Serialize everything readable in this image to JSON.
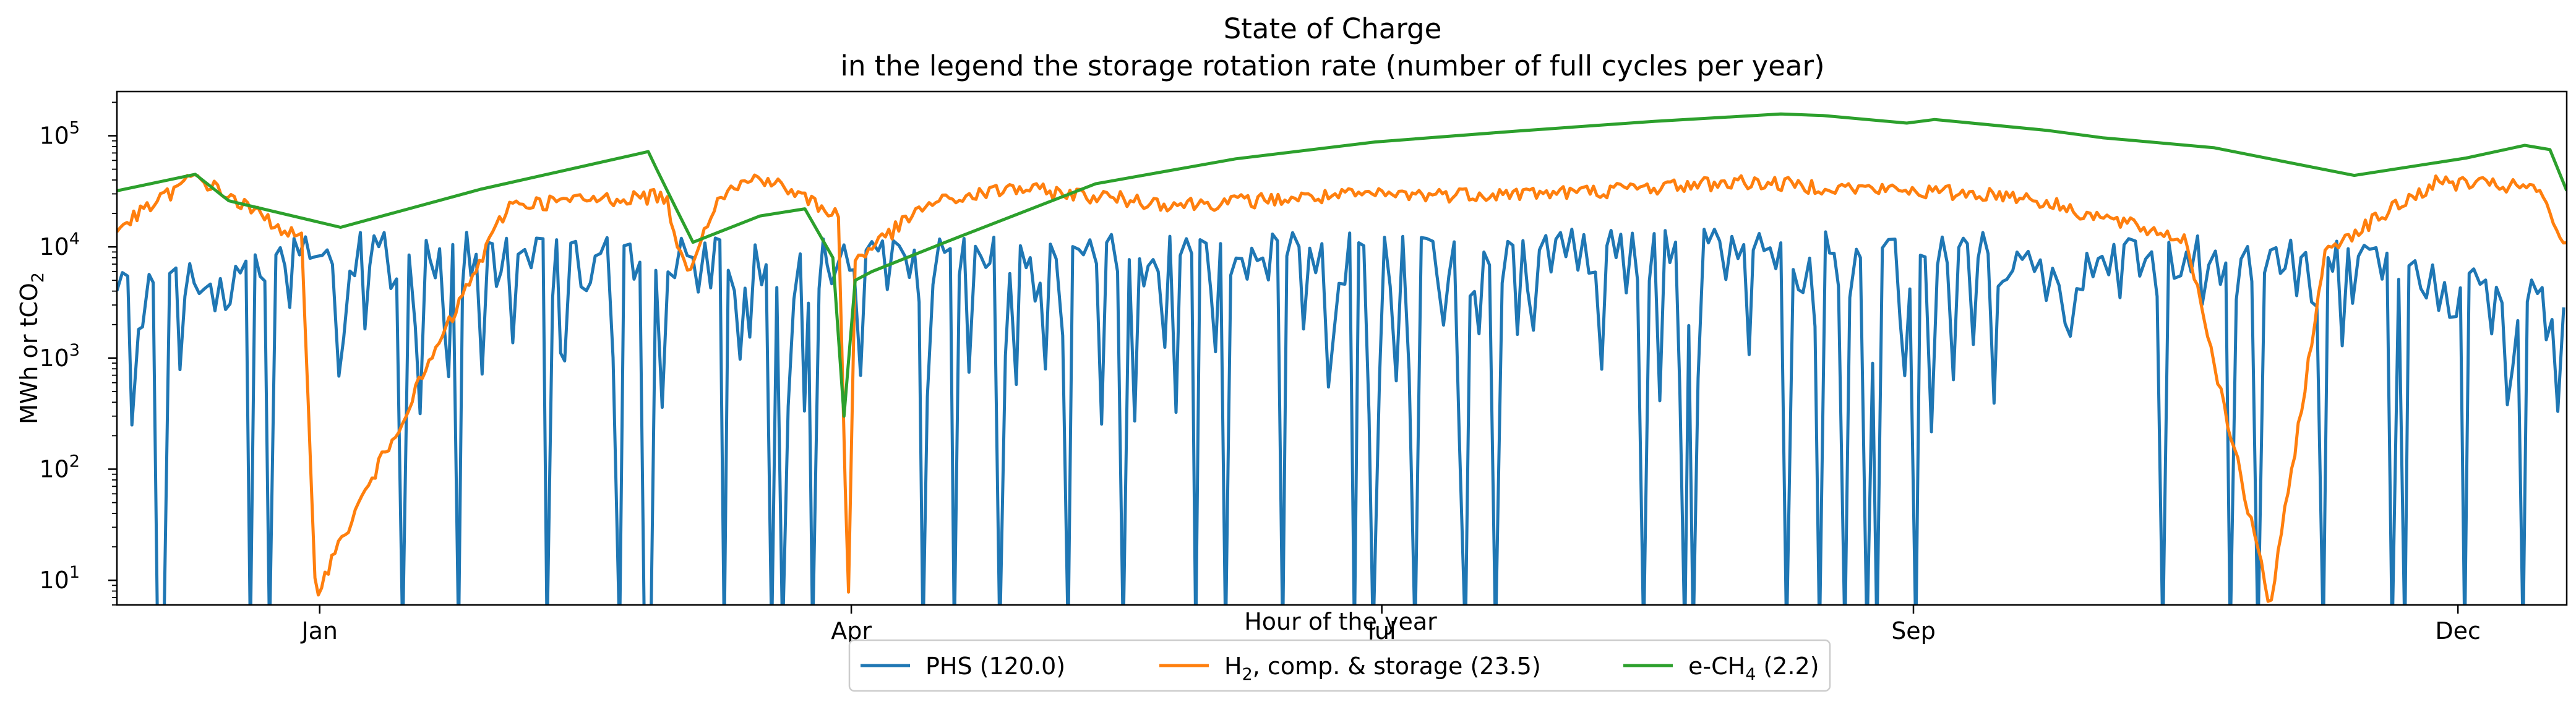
{
  "chart_data": {
    "type": "line",
    "title": "State of Charge",
    "subtitle": "in the legend the storage rotation rate (number of full cycles per year)",
    "xlabel": "Hour of the year",
    "ylabel": "MWh or tCO",
    "ylabel_sub": "2",
    "yscale": "log",
    "ylim": [
      6,
      250000
    ],
    "xlim": [
      0,
      8760
    ],
    "x_ticks": [
      {
        "label": "Jan",
        "x": 725
      },
      {
        "label": "Apr",
        "x": 2626
      },
      {
        "label": "Jul",
        "x": 4523
      },
      {
        "label": "Sep",
        "x": 6424
      },
      {
        "label": "Dec",
        "x": 8371
      }
    ],
    "y_ticks": [
      {
        "base": "10",
        "exp": "1",
        "value": 10
      },
      {
        "base": "10",
        "exp": "2",
        "value": 100
      },
      {
        "base": "10",
        "exp": "3",
        "value": 1000
      },
      {
        "base": "10",
        "exp": "4",
        "value": 10000
      },
      {
        "base": "10",
        "exp": "5",
        "value": 100000
      }
    ],
    "series": [
      {
        "name": "PHS (120.0)",
        "label_parts": [
          "PHS (120.0)"
        ],
        "color": "#1f77b4",
        "generator": "phs",
        "x": [
          0,
          800,
          1600,
          2400,
          3200,
          4000,
          4800,
          5600,
          6400,
          7200,
          8000,
          8760
        ],
        "values": [
          4000,
          10000,
          9000,
          8000,
          9000,
          10000,
          10000,
          10000,
          10000,
          9000,
          8000,
          3000
        ]
      },
      {
        "name": "H2, comp. & storage (23.5)",
        "label_parts": [
          "H",
          "2",
          ", comp. & storage (23.5)"
        ],
        "color": "#ff7f0e",
        "generator": "h2",
        "x": [
          0,
          280,
          660,
          710,
          1400,
          1960,
          2035,
          2150,
          2300,
          2580,
          2615,
          2640,
          2900,
          3200,
          3800,
          4400,
          5200,
          5800,
          6200,
          6800,
          7400,
          7700,
          7900,
          8300,
          8650,
          8760
        ],
        "values": [
          15000,
          45000,
          12000,
          8,
          25000,
          30000,
          6000,
          30000,
          45000,
          20000,
          6,
          8000,
          25000,
          35000,
          25000,
          30000,
          32000,
          40000,
          35000,
          30000,
          12000,
          6,
          10000,
          40000,
          35000,
          10000
        ]
      },
      {
        "name": "e-CH4 (2.2)",
        "label_parts": [
          "e-CH",
          "4",
          " (2.2)"
        ],
        "color": "#2ca02c",
        "x": [
          0,
          280,
          400,
          800,
          1300,
          1900,
          1930,
          2000,
          2060,
          2300,
          2460,
          2560,
          2600,
          2640,
          2700,
          3000,
          3500,
          4000,
          4500,
          5000,
          5500,
          5950,
          6100,
          6400,
          6500,
          6900,
          7100,
          7500,
          7700,
          8000,
          8400,
          8610,
          8700,
          8760
        ],
        "values": [
          32000,
          45000,
          26000,
          15000,
          33000,
          72000,
          50000,
          22000,
          11000,
          19000,
          22000,
          8000,
          300,
          5000,
          6000,
          12000,
          37000,
          62000,
          88000,
          110000,
          135000,
          157000,
          152000,
          130000,
          140000,
          112000,
          96000,
          78000,
          62000,
          44000,
          63000,
          82000,
          75000,
          32000
        ]
      }
    ],
    "legend_position": "lower-center"
  }
}
